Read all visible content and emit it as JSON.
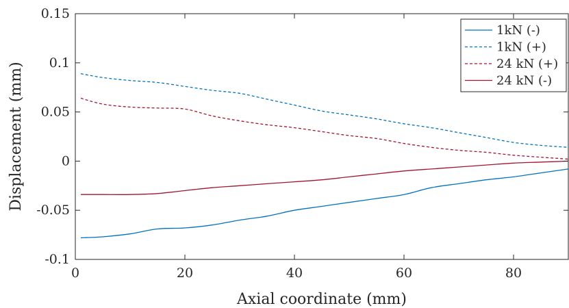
{
  "chart_data": {
    "type": "line",
    "xlabel": "Axial coordinate (mm)",
    "ylabel": "Displacement (mm)",
    "xlim": [
      0,
      90
    ],
    "ylim": [
      -0.1,
      0.15
    ],
    "xticks": [
      0,
      20,
      40,
      60,
      80
    ],
    "xtick_labels": [
      "0",
      "20",
      "40",
      "60",
      "80"
    ],
    "yticks": [
      -0.1,
      -0.05,
      0,
      0.05,
      0.1,
      0.15
    ],
    "ytick_labels": [
      "-0.1",
      "-0.05",
      "0",
      "0.05",
      "0.1",
      "0.15"
    ],
    "grid": false,
    "legend_position": "top-right",
    "x": [
      1,
      5,
      10,
      15,
      20,
      25,
      30,
      35,
      40,
      45,
      50,
      55,
      60,
      65,
      70,
      75,
      80,
      85,
      90
    ],
    "series": [
      {
        "name": "1kN (-)",
        "color": "#0072BD",
        "dash": "solid",
        "values": [
          -0.078,
          -0.077,
          -0.074,
          -0.069,
          -0.068,
          -0.065,
          -0.06,
          -0.056,
          -0.05,
          -0.046,
          -0.042,
          -0.038,
          -0.034,
          -0.027,
          -0.023,
          -0.019,
          -0.016,
          -0.012,
          -0.008
        ]
      },
      {
        "name": "1kN (+)",
        "color": "#0072BD",
        "dash": "dashed",
        "values": [
          0.089,
          0.085,
          0.082,
          0.08,
          0.076,
          0.072,
          0.069,
          0.063,
          0.057,
          0.051,
          0.047,
          0.043,
          0.038,
          0.034,
          0.029,
          0.024,
          0.019,
          0.016,
          0.014
        ]
      },
      {
        "name": "24 kN (+)",
        "color": "#A2142F",
        "dash": "dashed",
        "values": [
          0.064,
          0.058,
          0.055,
          0.054,
          0.053,
          0.046,
          0.041,
          0.037,
          0.034,
          0.03,
          0.026,
          0.023,
          0.018,
          0.014,
          0.011,
          0.009,
          0.006,
          0.004,
          0.002
        ]
      },
      {
        "name": "24 kN (-)",
        "color": "#A2142F",
        "dash": "solid",
        "values": [
          -0.034,
          -0.034,
          -0.034,
          -0.033,
          -0.03,
          -0.027,
          -0.025,
          -0.023,
          -0.021,
          -0.019,
          -0.016,
          -0.013,
          -0.01,
          -0.008,
          -0.006,
          -0.004,
          -0.002,
          -0.001,
          0.0
        ]
      }
    ]
  }
}
